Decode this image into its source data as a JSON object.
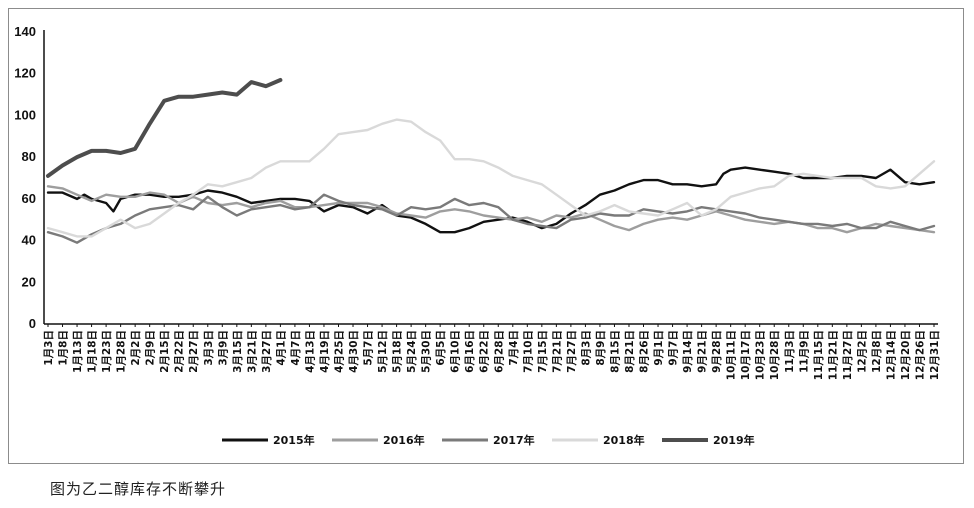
{
  "caption": "图为乙二醇库存不断攀升",
  "chart_data": {
    "type": "line",
    "title": "",
    "xlabel": "",
    "ylabel": "",
    "ylim": [
      0,
      140
    ],
    "yticks": [
      0,
      20,
      40,
      60,
      80,
      100,
      120,
      140
    ],
    "grid": false,
    "legend_position": "bottom",
    "categories": [
      "1月3日",
      "1月8日",
      "1月13日",
      "1月18日",
      "1月23日",
      "1月28日",
      "2月2日",
      "2月9日",
      "2月15日",
      "2月22日",
      "2月27日",
      "3月3日",
      "3月9日",
      "3月15日",
      "3月21日",
      "3月27日",
      "4月1日",
      "4月7日",
      "4月13日",
      "4月19日",
      "4月25日",
      "4月30日",
      "5月7日",
      "5月12日",
      "5月18日",
      "5月24日",
      "5月30日",
      "6月5日",
      "6月10日",
      "6月16日",
      "6月22日",
      "6月28日",
      "7月4日",
      "7月10日",
      "7月15日",
      "7月21日",
      "7月27日",
      "8月3日",
      "8月9日",
      "8月15日",
      "8月21日",
      "8月26日",
      "9月1日",
      "9月7日",
      "9月14日",
      "9月21日",
      "9月28日",
      "10月11日",
      "10月17日",
      "10月23日",
      "10月28日",
      "11月3日",
      "11月9日",
      "11月15日",
      "11月21日",
      "11月27日",
      "12月2日",
      "12月8日",
      "12月14日",
      "12月20日",
      "12月26日",
      "12月31日"
    ],
    "series": [
      {
        "name": "2015年",
        "color": "#111111",
        "width": 2.4,
        "values": [
          [
            0,
            63
          ],
          [
            1,
            63
          ],
          [
            2,
            60
          ],
          [
            2.5,
            62
          ],
          [
            3,
            60
          ],
          [
            4,
            58
          ],
          [
            4.5,
            54
          ],
          [
            5,
            60
          ],
          [
            6,
            62
          ],
          [
            7,
            62
          ],
          [
            8,
            61
          ],
          [
            9,
            61
          ],
          [
            10,
            62
          ],
          [
            11,
            64
          ],
          [
            12,
            63
          ],
          [
            13,
            61
          ],
          [
            14,
            58
          ],
          [
            15,
            59
          ],
          [
            16,
            60
          ],
          [
            17,
            60
          ],
          [
            18,
            59
          ],
          [
            19,
            54
          ],
          [
            20,
            57
          ],
          [
            21,
            56
          ],
          [
            22,
            53
          ],
          [
            23,
            57
          ],
          [
            24,
            52
          ],
          [
            25,
            51
          ],
          [
            26,
            48
          ],
          [
            27,
            44
          ],
          [
            28,
            44
          ],
          [
            29,
            46
          ],
          [
            30,
            49
          ],
          [
            31,
            50
          ],
          [
            32,
            51
          ],
          [
            33,
            49
          ],
          [
            34,
            46
          ],
          [
            35,
            48
          ],
          [
            36,
            53
          ],
          [
            37,
            57
          ],
          [
            38,
            62
          ],
          [
            39,
            64
          ],
          [
            40,
            67
          ],
          [
            41,
            69
          ],
          [
            42,
            69
          ],
          [
            43,
            67
          ],
          [
            44,
            67
          ],
          [
            45,
            66
          ],
          [
            46,
            67
          ],
          [
            46.5,
            72
          ],
          [
            47,
            74
          ],
          [
            48,
            75
          ],
          [
            49,
            74
          ],
          [
            50,
            73
          ],
          [
            51,
            72
          ],
          [
            52,
            70
          ],
          [
            53,
            70
          ],
          [
            54,
            70
          ],
          [
            55,
            71
          ],
          [
            56,
            71
          ],
          [
            57,
            70
          ],
          [
            58,
            74
          ],
          [
            59,
            68
          ],
          [
            60,
            67
          ],
          [
            61,
            68
          ]
        ]
      },
      {
        "name": "2016年",
        "color": "#9e9e9e",
        "width": 2.4,
        "values": [
          [
            0,
            66
          ],
          [
            1,
            65
          ],
          [
            2,
            62
          ],
          [
            3,
            59
          ],
          [
            4,
            62
          ],
          [
            5,
            61
          ],
          [
            6,
            61
          ],
          [
            7,
            63
          ],
          [
            8,
            62
          ],
          [
            9,
            58
          ],
          [
            10,
            61
          ],
          [
            11,
            58
          ],
          [
            12,
            57
          ],
          [
            13,
            58
          ],
          [
            14,
            56
          ],
          [
            15,
            58
          ],
          [
            16,
            59
          ],
          [
            17,
            56
          ],
          [
            18,
            56
          ],
          [
            19,
            57
          ],
          [
            20,
            58
          ],
          [
            21,
            58
          ],
          [
            22,
            58
          ],
          [
            23,
            56
          ],
          [
            24,
            53
          ],
          [
            25,
            52
          ],
          [
            26,
            51
          ],
          [
            27,
            54
          ],
          [
            28,
            55
          ],
          [
            29,
            54
          ],
          [
            30,
            52
          ],
          [
            31,
            51
          ],
          [
            32,
            50
          ],
          [
            33,
            51
          ],
          [
            34,
            49
          ],
          [
            35,
            52
          ],
          [
            36,
            51
          ],
          [
            37,
            53
          ],
          [
            38,
            50
          ],
          [
            39,
            47
          ],
          [
            40,
            45
          ],
          [
            41,
            48
          ],
          [
            42,
            50
          ],
          [
            43,
            51
          ],
          [
            44,
            50
          ],
          [
            45,
            52
          ],
          [
            46,
            54
          ],
          [
            47,
            52
          ],
          [
            48,
            50
          ],
          [
            49,
            49
          ],
          [
            50,
            48
          ],
          [
            51,
            49
          ],
          [
            52,
            48
          ],
          [
            53,
            46
          ],
          [
            54,
            46
          ],
          [
            55,
            44
          ],
          [
            56,
            46
          ],
          [
            57,
            48
          ],
          [
            58,
            47
          ],
          [
            59,
            46
          ],
          [
            60,
            45
          ],
          [
            61,
            44
          ]
        ]
      },
      {
        "name": "2017年",
        "color": "#7a7a7a",
        "width": 2.4,
        "values": [
          [
            0,
            44
          ],
          [
            1,
            42
          ],
          [
            2,
            39
          ],
          [
            3,
            43
          ],
          [
            4,
            46
          ],
          [
            5,
            48
          ],
          [
            6,
            52
          ],
          [
            7,
            55
          ],
          [
            8,
            56
          ],
          [
            9,
            57
          ],
          [
            10,
            55
          ],
          [
            11,
            61
          ],
          [
            12,
            56
          ],
          [
            13,
            52
          ],
          [
            14,
            55
          ],
          [
            15,
            56
          ],
          [
            16,
            57
          ],
          [
            17,
            55
          ],
          [
            18,
            56
          ],
          [
            19,
            62
          ],
          [
            20,
            59
          ],
          [
            21,
            57
          ],
          [
            22,
            56
          ],
          [
            23,
            55
          ],
          [
            24,
            52
          ],
          [
            25,
            56
          ],
          [
            26,
            55
          ],
          [
            27,
            56
          ],
          [
            28,
            60
          ],
          [
            29,
            57
          ],
          [
            30,
            58
          ],
          [
            31,
            56
          ],
          [
            32,
            50
          ],
          [
            33,
            48
          ],
          [
            34,
            47
          ],
          [
            35,
            46
          ],
          [
            36,
            50
          ],
          [
            37,
            51
          ],
          [
            38,
            53
          ],
          [
            39,
            52
          ],
          [
            40,
            52
          ],
          [
            41,
            55
          ],
          [
            42,
            54
          ],
          [
            43,
            53
          ],
          [
            44,
            54
          ],
          [
            45,
            56
          ],
          [
            46,
            55
          ],
          [
            47,
            54
          ],
          [
            48,
            53
          ],
          [
            49,
            51
          ],
          [
            50,
            50
          ],
          [
            51,
            49
          ],
          [
            52,
            48
          ],
          [
            53,
            48
          ],
          [
            54,
            47
          ],
          [
            55,
            48
          ],
          [
            56,
            46
          ],
          [
            57,
            46
          ],
          [
            58,
            49
          ],
          [
            59,
            47
          ],
          [
            60,
            45
          ],
          [
            61,
            47
          ]
        ]
      },
      {
        "name": "2018年",
        "color": "#d9d9d9",
        "width": 2.4,
        "values": [
          [
            0,
            46
          ],
          [
            1,
            44
          ],
          [
            2,
            42
          ],
          [
            3,
            42
          ],
          [
            4,
            46
          ],
          [
            5,
            50
          ],
          [
            6,
            46
          ],
          [
            7,
            48
          ],
          [
            8,
            53
          ],
          [
            9,
            58
          ],
          [
            10,
            62
          ],
          [
            11,
            67
          ],
          [
            12,
            66
          ],
          [
            13,
            68
          ],
          [
            14,
            70
          ],
          [
            15,
            75
          ],
          [
            16,
            78
          ],
          [
            17,
            78
          ],
          [
            18,
            78
          ],
          [
            19,
            84
          ],
          [
            20,
            91
          ],
          [
            21,
            92
          ],
          [
            22,
            93
          ],
          [
            23,
            96
          ],
          [
            24,
            98
          ],
          [
            25,
            97
          ],
          [
            26,
            92
          ],
          [
            27,
            88
          ],
          [
            28,
            79
          ],
          [
            29,
            79
          ],
          [
            30,
            78
          ],
          [
            31,
            75
          ],
          [
            32,
            71
          ],
          [
            33,
            69
          ],
          [
            34,
            67
          ],
          [
            35,
            62
          ],
          [
            36,
            57
          ],
          [
            37,
            52
          ],
          [
            38,
            54
          ],
          [
            39,
            57
          ],
          [
            40,
            54
          ],
          [
            41,
            53
          ],
          [
            42,
            52
          ],
          [
            43,
            55
          ],
          [
            44,
            58
          ],
          [
            45,
            52
          ],
          [
            46,
            55
          ],
          [
            47,
            61
          ],
          [
            48,
            63
          ],
          [
            49,
            65
          ],
          [
            50,
            66
          ],
          [
            51,
            71
          ],
          [
            52,
            72
          ],
          [
            53,
            71
          ],
          [
            54,
            70
          ],
          [
            55,
            70
          ],
          [
            56,
            70
          ],
          [
            57,
            66
          ],
          [
            58,
            65
          ],
          [
            59,
            66
          ],
          [
            60,
            72
          ],
          [
            61,
            78
          ]
        ]
      },
      {
        "name": "2019年",
        "color": "#4d4d4d",
        "width": 4,
        "values": [
          [
            0,
            71
          ],
          [
            1,
            76
          ],
          [
            2,
            80
          ],
          [
            3,
            83
          ],
          [
            4,
            83
          ],
          [
            5,
            82
          ],
          [
            6,
            84
          ],
          [
            7,
            96
          ],
          [
            8,
            107
          ],
          [
            9,
            109
          ],
          [
            10,
            109
          ],
          [
            11,
            110
          ],
          [
            12,
            111
          ],
          [
            13,
            110
          ],
          [
            14,
            116
          ],
          [
            15,
            114
          ],
          [
            16,
            117
          ]
        ]
      }
    ]
  }
}
